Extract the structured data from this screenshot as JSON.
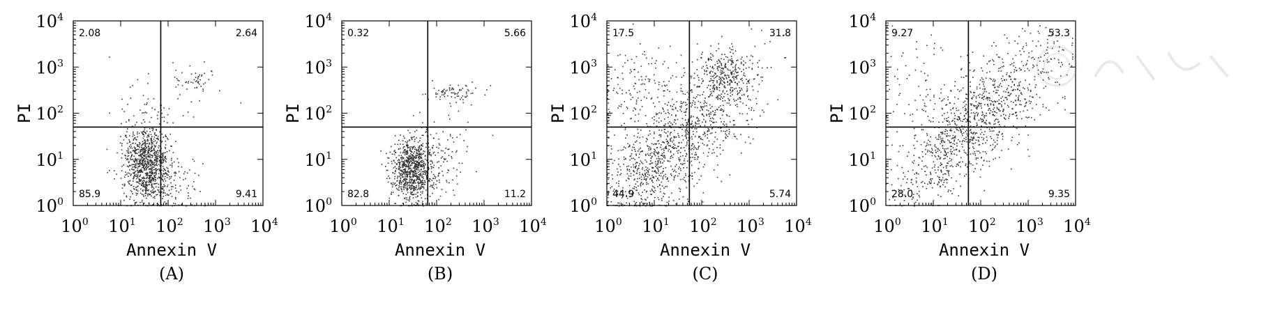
{
  "chart_data": [
    {
      "type": "scatter",
      "panel_label": "(A)",
      "xlabel": "Annexin V",
      "ylabel": "PI",
      "x_scale": "log",
      "y_scale": "log",
      "xlim": [
        1,
        10000
      ],
      "ylim": [
        1,
        10000
      ],
      "x_ticks": [
        "10^0",
        "10^1",
        "10^2",
        "10^3",
        "10^4"
      ],
      "y_ticks": [
        "10^0",
        "10^1",
        "10^2",
        "10^3",
        "10^4"
      ],
      "gate": {
        "x": 70,
        "y": 50
      },
      "quadrant_percentages": {
        "upper_left": "2.08",
        "upper_right": "2.64",
        "lower_left": "85.9",
        "lower_right": "9.41"
      },
      "clusters": [
        {
          "center": [
            35,
            8
          ],
          "spread_log": [
            0.25,
            0.42
          ],
          "points": 1000
        },
        {
          "center": [
            350,
            550
          ],
          "spread_log": [
            0.2,
            0.12
          ],
          "points": 40
        },
        {
          "center": [
            80,
            200
          ],
          "spread_log": [
            0.45,
            0.45
          ],
          "points": 50
        },
        {
          "center": [
            150,
            3
          ],
          "spread_log": [
            0.3,
            0.4
          ],
          "points": 80
        }
      ]
    },
    {
      "type": "scatter",
      "panel_label": "(B)",
      "xlabel": "Annexin V",
      "ylabel": "PI",
      "x_scale": "log",
      "y_scale": "log",
      "xlim": [
        1,
        10000
      ],
      "ylim": [
        1,
        10000
      ],
      "x_ticks": [
        "10^0",
        "10^1",
        "10^2",
        "10^3",
        "10^4"
      ],
      "y_ticks": [
        "10^0",
        "10^1",
        "10^2",
        "10^3",
        "10^4"
      ],
      "gate": {
        "x": 65,
        "y": 50
      },
      "quadrant_percentages": {
        "upper_left": "0.32",
        "upper_right": "5.66",
        "lower_left": "82.8",
        "lower_right": "11.2"
      },
      "clusters": [
        {
          "center": [
            30,
            6
          ],
          "spread_log": [
            0.22,
            0.35
          ],
          "points": 850
        },
        {
          "center": [
            250,
            280
          ],
          "spread_log": [
            0.25,
            0.1
          ],
          "points": 70
        },
        {
          "center": [
            120,
            8
          ],
          "spread_log": [
            0.3,
            0.4
          ],
          "points": 100
        },
        {
          "center": [
            200,
            80
          ],
          "spread_log": [
            0.4,
            0.4
          ],
          "points": 15
        }
      ]
    },
    {
      "type": "scatter",
      "panel_label": "(C)",
      "xlabel": "Annexin V",
      "ylabel": "PI",
      "x_scale": "log",
      "y_scale": "log",
      "xlim": [
        1,
        10000
      ],
      "ylim": [
        1,
        10000
      ],
      "x_ticks": [
        "10^0",
        "10^1",
        "10^2",
        "10^3",
        "10^4"
      ],
      "y_ticks": [
        "10^0",
        "10^1",
        "10^2",
        "10^3",
        "10^4"
      ],
      "gate": {
        "x": 55,
        "y": 50
      },
      "quadrant_percentages": {
        "upper_left": "17.5",
        "upper_right": "31.8",
        "lower_left": "44.9",
        "lower_right": "5.74"
      },
      "clusters": [
        {
          "center": [
            40,
            30
          ],
          "spread_log": [
            0.45,
            0.45
          ],
          "points": 900,
          "diagonal": true
        },
        {
          "center": [
            300,
            600
          ],
          "spread_log": [
            0.3,
            0.3
          ],
          "points": 300
        },
        {
          "center": [
            5,
            300
          ],
          "spread_log": [
            0.5,
            0.6
          ],
          "points": 180
        },
        {
          "center": [
            6,
            5
          ],
          "spread_log": [
            0.35,
            0.4
          ],
          "points": 200
        }
      ]
    },
    {
      "type": "scatter",
      "panel_label": "(D)",
      "xlabel": "Annexin V",
      "ylabel": "PI",
      "x_scale": "log",
      "y_scale": "log",
      "xlim": [
        1,
        10000
      ],
      "ylim": [
        1,
        10000
      ],
      "x_ticks": [
        "10^0",
        "10^1",
        "10^2",
        "10^3",
        "10^4"
      ],
      "y_ticks": [
        "10^0",
        "10^1",
        "10^2",
        "10^3",
        "10^4"
      ],
      "gate": {
        "x": 55,
        "y": 50
      },
      "quadrant_percentages": {
        "upper_left": "9.27",
        "upper_right": "53.3",
        "lower_left": "28.0",
        "lower_right": "9.35"
      },
      "clusters": [
        {
          "center": [
            250,
            200
          ],
          "spread_log": [
            0.45,
            0.45
          ],
          "points": 700,
          "diagonal": true
        },
        {
          "center": [
            25,
            20
          ],
          "spread_log": [
            0.3,
            0.35
          ],
          "points": 350,
          "diagonal": true
        },
        {
          "center": [
            5,
            300
          ],
          "spread_log": [
            0.5,
            0.6
          ],
          "points": 90
        },
        {
          "center": [
            5,
            4
          ],
          "spread_log": [
            0.3,
            0.4
          ],
          "points": 60
        }
      ]
    }
  ]
}
